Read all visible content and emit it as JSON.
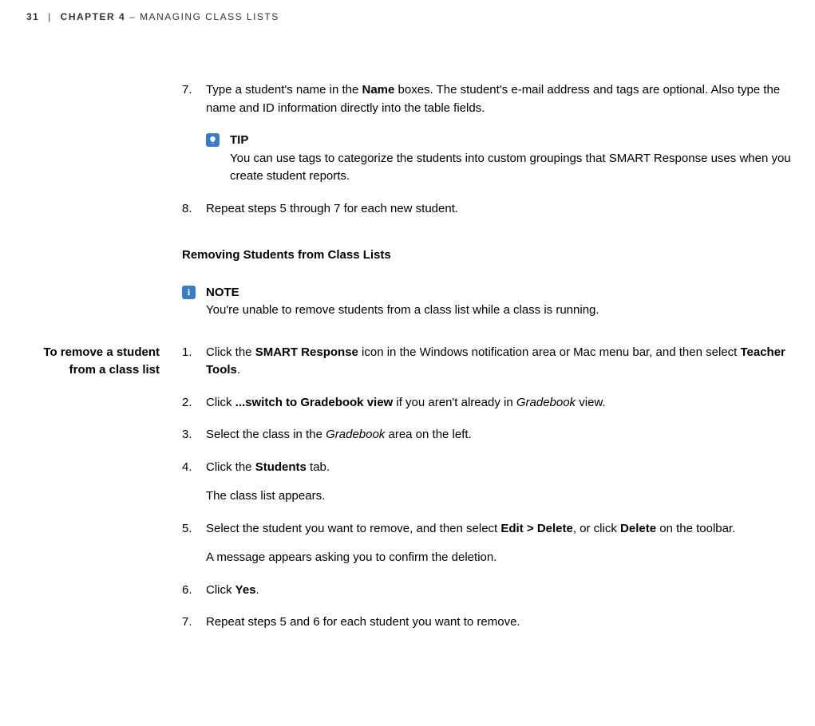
{
  "header": {
    "page_number": "31",
    "separator": "|",
    "chapter_label": "CHAPTER 4",
    "dash": "–",
    "chapter_title": "MANAGING CLASS LISTS"
  },
  "steps_top": [
    {
      "num": "7.",
      "text_before": "Type a student's name in the ",
      "bold1": "Name",
      "text_after": " boxes. The student's e-mail address and tags are optional. Also type the name and ID information directly into the table fields.",
      "tip": {
        "label": "TIP",
        "body": "You can use tags to categorize the students into custom groupings that SMART Response uses when you create student reports."
      }
    },
    {
      "num": "8.",
      "text": "Repeat steps 5 through 7 for each new student."
    }
  ],
  "section_heading": "Removing Students from Class Lists",
  "note": {
    "label": "NOTE",
    "body": "You're unable to remove students from a class list while a class is running."
  },
  "sidebar": {
    "line1": "To remove a student",
    "line2": "from a class list"
  },
  "steps_remove": [
    {
      "num": "1.",
      "parts": [
        {
          "t": "Click the "
        },
        {
          "b": "SMART Response"
        },
        {
          "t": " icon in the Windows notification area or Mac menu bar, and then select "
        },
        {
          "b": "Teacher Tools"
        },
        {
          "t": "."
        }
      ]
    },
    {
      "num": "2.",
      "parts": [
        {
          "t": "Click "
        },
        {
          "b": "...switch to Gradebook view"
        },
        {
          "t": " if you aren't already in "
        },
        {
          "i": "Gradebook"
        },
        {
          "t": " view."
        }
      ]
    },
    {
      "num": "3.",
      "parts": [
        {
          "t": "Select the class in the "
        },
        {
          "i": "Gradebook"
        },
        {
          "t": " area on the left."
        }
      ]
    },
    {
      "num": "4.",
      "parts": [
        {
          "t": "Click the "
        },
        {
          "b": "Students"
        },
        {
          "t": " tab."
        }
      ],
      "sub": "The class list appears."
    },
    {
      "num": "5.",
      "parts": [
        {
          "t": "Select the student you want to remove, and then select "
        },
        {
          "b": "Edit > Delete"
        },
        {
          "t": ", or click "
        },
        {
          "b": "Delete"
        },
        {
          "t": " on the toolbar."
        }
      ],
      "sub": "A message appears asking you to confirm the deletion."
    },
    {
      "num": "6.",
      "parts": [
        {
          "t": "Click "
        },
        {
          "b": "Yes"
        },
        {
          "t": "."
        }
      ]
    },
    {
      "num": "7.",
      "parts": [
        {
          "t": "Repeat steps 5 and 6 for each student you want to remove."
        }
      ]
    }
  ]
}
